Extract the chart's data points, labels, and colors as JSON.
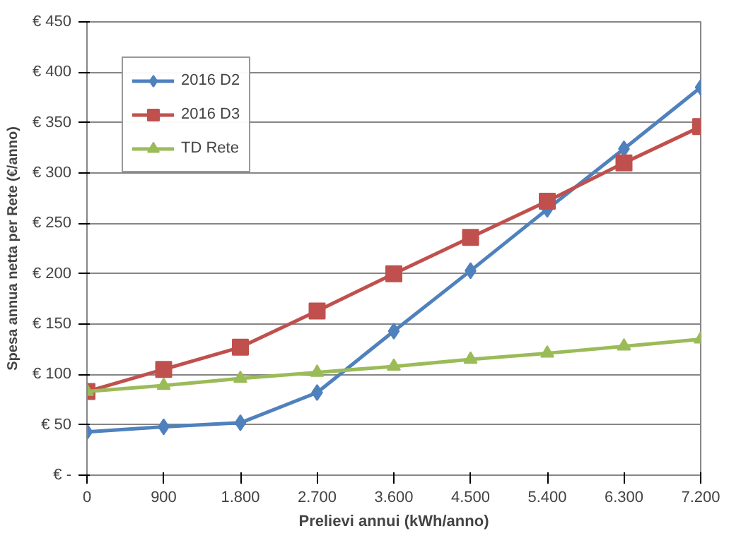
{
  "chart_data": {
    "type": "line",
    "xlabel": "Prelievi annui (kWh/anno)",
    "ylabel": "Spesa annua netta per Rete (€/anno)",
    "x": [
      0,
      900,
      1800,
      2700,
      3600,
      4500,
      5400,
      6300,
      7200
    ],
    "series": [
      {
        "name": "2016 D2",
        "color": "#4f81bd",
        "marker": "diamond",
        "values": [
          43,
          48,
          52,
          82,
          143,
          203,
          264,
          324,
          385
        ]
      },
      {
        "name": "2016 D3",
        "color": "#c0504d",
        "marker": "square",
        "values": [
          83,
          105,
          127,
          163,
          200,
          236,
          272,
          310,
          346
        ]
      },
      {
        "name": "TD Rete",
        "color": "#9bbb59",
        "marker": "triangle",
        "values": [
          83,
          89,
          96,
          102,
          108,
          115,
          121,
          128,
          135
        ]
      }
    ],
    "xlim": [
      0,
      7200
    ],
    "xticks": [
      0,
      {
        "value": 900,
        "label": "900"
      },
      {
        "value": 1800,
        "label": "1.800"
      },
      {
        "value": 2700,
        "label": "2.700"
      },
      {
        "value": 3600,
        "label": "3.600"
      },
      {
        "value": 4500,
        "label": "4.500"
      },
      {
        "value": 5400,
        "label": "5.400"
      },
      {
        "value": 6300,
        "label": "6.300"
      },
      {
        "value": 7200,
        "label": "7.200"
      }
    ],
    "ylim": [
      0,
      450
    ],
    "yticks": [
      {
        "value": 0,
        "label": "€ -"
      },
      {
        "value": 50,
        "label": "€ 50"
      },
      {
        "value": 100,
        "label": "€ 100"
      },
      {
        "value": 150,
        "label": "€ 150"
      },
      {
        "value": 200,
        "label": "€ 200"
      },
      {
        "value": 250,
        "label": "€ 250"
      },
      {
        "value": 300,
        "label": "€ 300"
      },
      {
        "value": 350,
        "label": "€ 350"
      },
      {
        "value": 400,
        "label": "€ 400"
      },
      {
        "value": 450,
        "label": "€ 450"
      }
    ],
    "grid": "y",
    "legend": "top left",
    "line_style": "solid"
  }
}
